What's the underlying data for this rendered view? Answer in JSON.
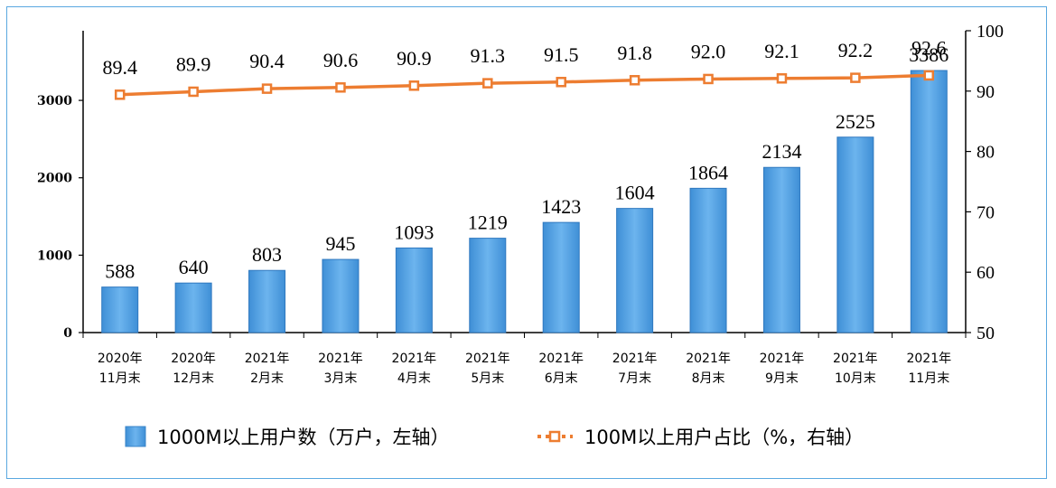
{
  "chart_data": {
    "type": "bar+line",
    "categories": [
      [
        "2020年",
        "11月末"
      ],
      [
        "2020年",
        "12月末"
      ],
      [
        "2021年",
        "2月末"
      ],
      [
        "2021年",
        "3月末"
      ],
      [
        "2021年",
        "4月末"
      ],
      [
        "2021年",
        "5月末"
      ],
      [
        "2021年",
        "6月末"
      ],
      [
        "2021年",
        "7月末"
      ],
      [
        "2021年",
        "8月末"
      ],
      [
        "2021年",
        "9月末"
      ],
      [
        "2021年",
        "10月末"
      ],
      [
        "2021年",
        "11月末"
      ]
    ],
    "series": [
      {
        "name": "1000M以上用户数（万户，左轴）",
        "type": "bar",
        "axis": "left",
        "color": "#5ba3e3",
        "values": [
          588,
          640,
          803,
          945,
          1093,
          1219,
          1423,
          1604,
          1864,
          2134,
          2525,
          3386
        ],
        "labels": [
          "588",
          "640",
          "803",
          "945",
          "1093",
          "1219",
          "1423",
          "1604",
          "1864",
          "2134",
          "2525",
          "3386"
        ]
      },
      {
        "name": "100M以上用户占比（%，右轴）",
        "type": "line",
        "axis": "right",
        "color": "#ed7d31",
        "values": [
          89.4,
          89.9,
          90.4,
          90.6,
          90.9,
          91.3,
          91.5,
          91.8,
          92.0,
          92.1,
          92.2,
          92.6
        ],
        "labels": [
          "89.4",
          "89.9",
          "90.4",
          "90.6",
          "90.9",
          "91.3",
          "91.5",
          "91.8",
          "92.0",
          "92.1",
          "92.2",
          "92.6"
        ]
      }
    ],
    "left_axis": {
      "ylim": [
        0,
        3900
      ],
      "ticks": [
        0,
        1000,
        2000,
        3000
      ],
      "tick_labels": [
        "0",
        "1000",
        "2000",
        "3000"
      ]
    },
    "right_axis": {
      "ylim": [
        50,
        100
      ],
      "ticks": [
        50,
        60,
        70,
        80,
        90,
        100
      ],
      "tick_labels": [
        "50",
        "60",
        "70",
        "80",
        "90",
        "100"
      ]
    },
    "legend_position": "bottom"
  }
}
